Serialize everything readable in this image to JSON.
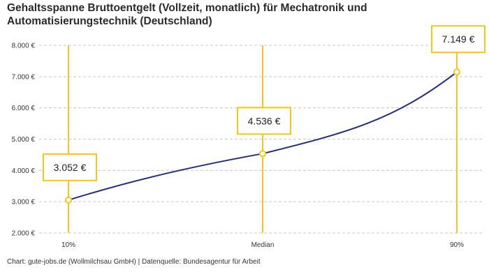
{
  "title_line1": "Gehaltsspanne Bruttoentgelt (Vollzeit, monatlich) für Mechatronik und",
  "title_line2": "Automatisierungstechnik (Deutschland)",
  "source": "Chart: gute-jobs.de (Wollmilchsau GmbH) | Datenquelle: Bundesagentur für Arbeit",
  "colors": {
    "line": "#1f2d8a",
    "accent": "#f5c518",
    "grid": "#c8c8c8"
  },
  "chart_data": {
    "type": "line",
    "categories": [
      "10%",
      "Median",
      "90%"
    ],
    "values": [
      3052,
      4536,
      7149
    ],
    "value_labels": [
      "3.052 €",
      "4.536 €",
      "7.149 €"
    ],
    "ylim": [
      2000,
      8000
    ],
    "yticks": [
      2000,
      3000,
      4000,
      5000,
      6000,
      7000,
      8000
    ],
    "ytick_labels": [
      "2.000 €",
      "3.000 €",
      "4.000 €",
      "5.000 €",
      "6.000 €",
      "7.000 €",
      "8.000 €"
    ],
    "grid": true
  }
}
